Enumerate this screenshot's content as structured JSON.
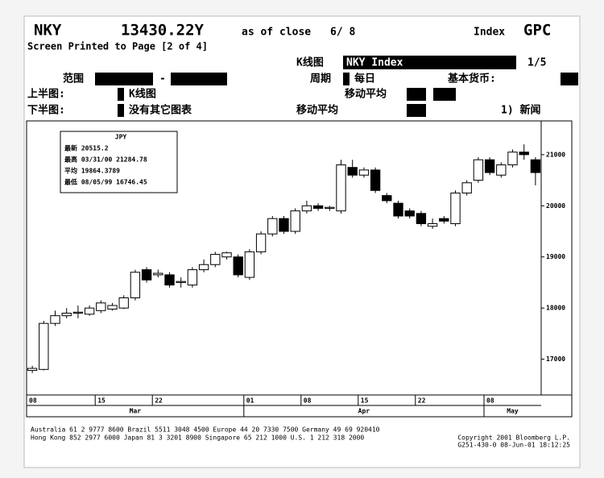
{
  "header": {
    "symbol": "NKY",
    "price": "13430.22Y",
    "as_of": "as of close",
    "date": "6/ 8",
    "kind": "Index",
    "page": "GPC",
    "printed": "Screen Printed to Page [2 of 4]",
    "chart_kind_label": "K线图",
    "chart_kind_value": "NKY Index",
    "page_count": "1/5",
    "range_label": "范围",
    "range_dash": "-",
    "period_label": "周期",
    "period_value": "每日",
    "currency_label": "基本货币:",
    "upper_label": "上半图:",
    "upper_value": "K线图",
    "ma_label_1": "移动平均",
    "lower_label": "下半图:",
    "lower_value": "没有其它图表",
    "ma_label_2": "移动平均",
    "news": "1) 新闻"
  },
  "footer": {
    "line1": "Australia 61 2 9777 8600   Brazil 5511 3048 4500   Europe 44 20 7330 7500   Germany 49 69 920410",
    "line2": "Hong Kong 852 2977 6000  Japan 81 3 3201 8900  Singapore 65 212 1000  U.S. 1 212 318 2000",
    "copyright": "Copyright 2001 Bloomberg L.P.",
    "stamp": "G251-430-0 08-Jun-01 18:12:25"
  },
  "chart_data": {
    "type": "candlestick",
    "legend_title": "JPY",
    "annotations": [
      "最新 20515.2",
      "最高 03/31/00 21284.78",
      "平均 19864.3789",
      "最低 08/05/99 16746.45"
    ],
    "categories": [
      "08",
      null,
      null,
      null,
      null,
      null,
      "15",
      null,
      null,
      null,
      null,
      "22",
      null,
      null,
      null,
      null,
      null,
      null,
      null,
      "01",
      null,
      null,
      null,
      null,
      "08",
      null,
      null,
      null,
      null,
      "15",
      null,
      null,
      null,
      null,
      "22",
      null,
      null,
      null,
      null,
      null,
      "08",
      null,
      null,
      null,
      null
    ],
    "x_groups": [
      {
        "label": "Mar",
        "start": 0,
        "end": 18
      },
      {
        "label": "Apr",
        "start": 19,
        "end": 39
      },
      {
        "label": "May",
        "start": 40,
        "end": 44
      }
    ],
    "open": [
      16780,
      16800,
      17700,
      17850,
      17900,
      17880,
      17950,
      17980,
      18000,
      18200,
      18750,
      18650,
      18650,
      18500,
      18450,
      18750,
      18850,
      19000,
      19000,
      18600,
      19100,
      19450,
      19750,
      19500,
      19900,
      20000,
      19950,
      19900,
      20750,
      20600,
      20700,
      20200,
      20050,
      19900,
      19850,
      19600,
      19750,
      19650,
      20250,
      20500,
      20900,
      20600,
      20800,
      21050,
      20900
    ],
    "high": [
      16870,
      17750,
      17950,
      18000,
      18050,
      18050,
      18150,
      18100,
      18250,
      18750,
      18800,
      18750,
      18700,
      18600,
      18800,
      18950,
      19100,
      19100,
      19050,
      19150,
      19500,
      19800,
      19800,
      19950,
      20100,
      20050,
      20000,
      20900,
      20900,
      20750,
      20750,
      20250,
      20100,
      19950,
      19900,
      19750,
      19800,
      20300,
      20500,
      20950,
      20950,
      20850,
      21100,
      21200,
      20950
    ],
    "low": [
      16730,
      16780,
      17650,
      17800,
      17800,
      17850,
      17900,
      17950,
      17980,
      18150,
      18500,
      18600,
      18400,
      18400,
      18400,
      18700,
      18800,
      18950,
      18600,
      18550,
      19050,
      19400,
      19450,
      19450,
      19850,
      19900,
      19900,
      19850,
      20550,
      20550,
      20250,
      20050,
      19750,
      19750,
      19600,
      19550,
      19650,
      19600,
      20200,
      20450,
      20600,
      20550,
      20750,
      20900,
      20400
    ],
    "close": [
      16820,
      17700,
      17850,
      17900,
      17920,
      18000,
      18100,
      18050,
      18200,
      18700,
      18550,
      18680,
      18450,
      18520,
      18750,
      18850,
      19050,
      19080,
      18650,
      19100,
      19450,
      19750,
      19500,
      19900,
      20000,
      19950,
      19970,
      20800,
      20600,
      20700,
      20300,
      20100,
      19800,
      19800,
      19650,
      19650,
      19700,
      20250,
      20450,
      20900,
      20650,
      20800,
      21050,
      21000,
      20650
    ],
    "up_color": "#ffffff",
    "down_color": "#000000",
    "ylim": [
      16300,
      21660
    ],
    "yticks": [
      17000,
      18000,
      19000,
      20000,
      21000
    ],
    "y_axis_side": "right"
  }
}
